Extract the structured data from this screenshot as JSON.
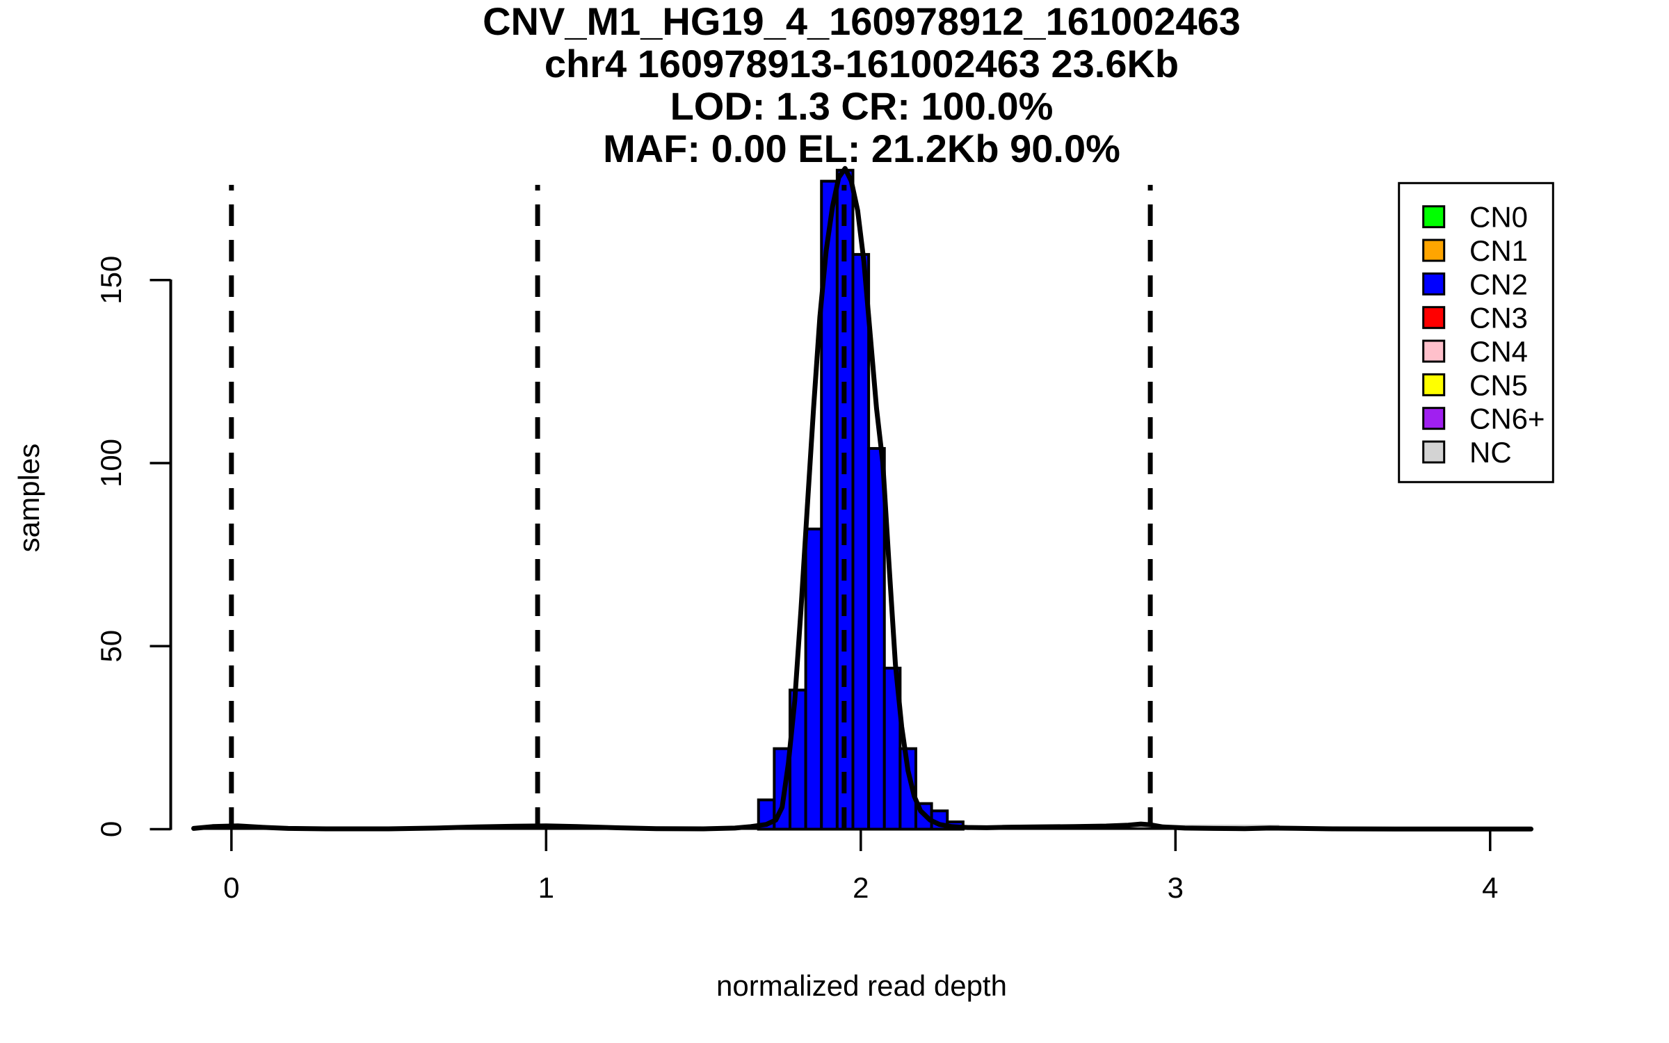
{
  "chart_data": {
    "type": "bar",
    "subtype": "histogram-with-density",
    "title_lines": [
      "CNV_M1_HG19_4_160978912_161002463",
      "chr4 160978913-161002463 23.6Kb",
      "LOD: 1.3 CR: 100.0%",
      "MAF: 0.00 EL: 21.2Kb 90.0%"
    ],
    "xlabel": "normalized read depth",
    "ylabel": "samples",
    "xticks": [
      0,
      1,
      2,
      3,
      4
    ],
    "yticks": [
      0,
      50,
      100,
      150
    ],
    "xlim": [
      -0.125,
      4.13
    ],
    "ylim": [
      0,
      182
    ],
    "grid": false,
    "bar_color": "#0000FF",
    "bar_edge_color": "#000000",
    "axis_color": "#000000",
    "histogram": {
      "bin_start": 1.675,
      "bin_width": 0.05,
      "counts": [
        8,
        22,
        38,
        82,
        177,
        180,
        157,
        104,
        44,
        22,
        7,
        5,
        2
      ]
    },
    "density_curve": {
      "color": "#000000",
      "x": [
        -0.12,
        -0.06,
        0.02,
        0.1,
        0.18,
        0.3,
        0.5,
        0.65,
        0.78,
        0.9,
        1.0,
        1.1,
        1.22,
        1.35,
        1.5,
        1.6,
        1.65,
        1.7,
        1.73,
        1.75,
        1.77,
        1.79,
        1.81,
        1.83,
        1.85,
        1.87,
        1.89,
        1.91,
        1.93,
        1.95,
        1.97,
        1.99,
        2.01,
        2.03,
        2.05,
        2.07,
        2.09,
        2.11,
        2.13,
        2.15,
        2.17,
        2.19,
        2.22,
        2.25,
        2.29,
        2.34,
        2.4,
        2.48,
        2.58,
        2.68,
        2.78,
        2.85,
        2.89,
        2.92,
        2.96,
        3.03,
        3.12,
        3.22,
        3.3,
        3.38,
        3.5,
        3.7,
        4.0,
        4.13
      ],
      "y": [
        0.2,
        0.7,
        0.9,
        0.5,
        0.2,
        0.1,
        0.1,
        0.3,
        0.6,
        0.8,
        0.9,
        0.7,
        0.4,
        0.15,
        0.1,
        0.3,
        0.7,
        1.3,
        2.5,
        6,
        18,
        35,
        60,
        88,
        115,
        140,
        158,
        170,
        178,
        180.5,
        177,
        169,
        155,
        135,
        115,
        100,
        72,
        45,
        28,
        16,
        9,
        5,
        2.5,
        1.3,
        0.7,
        0.45,
        0.4,
        0.55,
        0.65,
        0.7,
        0.85,
        1.1,
        1.4,
        1.2,
        0.6,
        0.3,
        0.2,
        0.15,
        0.3,
        0.25,
        0.1,
        0.05,
        0.03,
        0.03
      ]
    },
    "dashed_vlines": {
      "style": "dashed",
      "color": "#000000",
      "x": [
        0,
        0.973,
        1.947,
        2.92
      ],
      "y_top": 176
    },
    "nc_baseline_segment": {
      "x1": 2.45,
      "x2": 3.33,
      "y": 0.85,
      "color": "#CCCCCC"
    },
    "legend": {
      "position": "top-right",
      "entries": [
        {
          "label": "CN0",
          "color": "#00FF00"
        },
        {
          "label": "CN1",
          "color": "#FFA500"
        },
        {
          "label": "CN2",
          "color": "#0000FF"
        },
        {
          "label": "CN3",
          "color": "#FF0000"
        },
        {
          "label": "CN4",
          "color": "#FFC0CB"
        },
        {
          "label": "CN5",
          "color": "#FFFF00"
        },
        {
          "label": "CN6+",
          "color": "#A020F0"
        },
        {
          "label": "NC",
          "color": "#D3D3D3"
        }
      ]
    }
  }
}
